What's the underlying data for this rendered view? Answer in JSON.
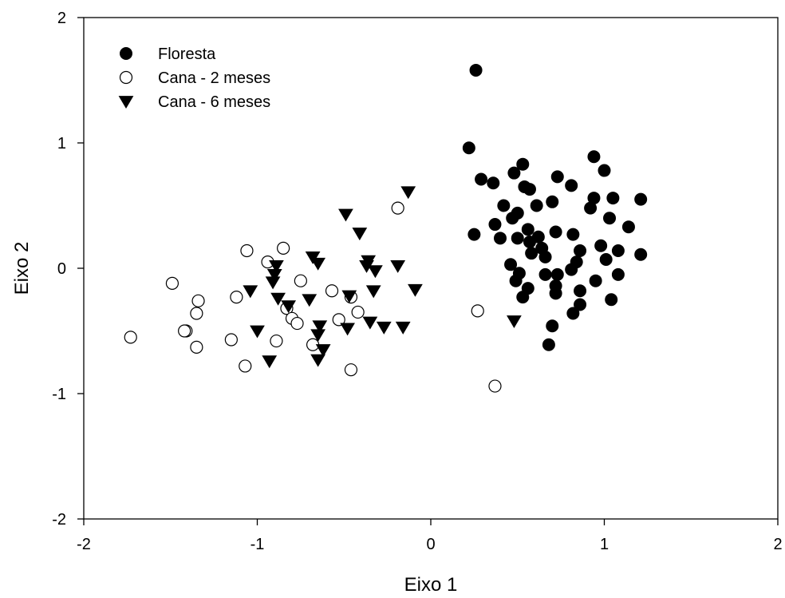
{
  "chart_data": {
    "type": "scatter",
    "xlabel": "Eixo 1",
    "ylabel": "Eixo 2",
    "xlim": [
      -2,
      2
    ],
    "ylim": [
      -2,
      2
    ],
    "xticks": [
      "-2",
      "-1",
      "0",
      "1",
      "2"
    ],
    "yticks": [
      "-2",
      "-1",
      "0",
      "1",
      "2"
    ],
    "grid": false,
    "legend_position": "top-left",
    "series": [
      {
        "name": "Floresta",
        "marker": "filled-circle",
        "color": "#000000",
        "points": [
          [
            0.26,
            1.58
          ],
          [
            0.22,
            0.96
          ],
          [
            0.94,
            0.89
          ],
          [
            0.53,
            0.83
          ],
          [
            1.0,
            0.78
          ],
          [
            0.48,
            0.76
          ],
          [
            0.73,
            0.73
          ],
          [
            0.29,
            0.71
          ],
          [
            0.36,
            0.68
          ],
          [
            0.81,
            0.66
          ],
          [
            0.54,
            0.65
          ],
          [
            0.57,
            0.63
          ],
          [
            1.21,
            0.55
          ],
          [
            0.94,
            0.56
          ],
          [
            1.05,
            0.56
          ],
          [
            0.7,
            0.53
          ],
          [
            0.42,
            0.5
          ],
          [
            0.61,
            0.5
          ],
          [
            0.92,
            0.48
          ],
          [
            0.5,
            0.44
          ],
          [
            1.03,
            0.4
          ],
          [
            0.47,
            0.4
          ],
          [
            0.37,
            0.35
          ],
          [
            1.14,
            0.33
          ],
          [
            0.56,
            0.31
          ],
          [
            0.72,
            0.29
          ],
          [
            0.25,
            0.27
          ],
          [
            0.82,
            0.27
          ],
          [
            0.5,
            0.24
          ],
          [
            0.62,
            0.25
          ],
          [
            0.4,
            0.24
          ],
          [
            0.57,
            0.21
          ],
          [
            0.98,
            0.18
          ],
          [
            0.64,
            0.16
          ],
          [
            1.08,
            0.14
          ],
          [
            0.86,
            0.14
          ],
          [
            0.58,
            0.12
          ],
          [
            1.21,
            0.11
          ],
          [
            0.66,
            0.09
          ],
          [
            1.01,
            0.07
          ],
          [
            0.84,
            0.05
          ],
          [
            0.46,
            0.03
          ],
          [
            0.81,
            -0.01
          ],
          [
            0.51,
            -0.04
          ],
          [
            0.66,
            -0.05
          ],
          [
            0.73,
            -0.05
          ],
          [
            1.08,
            -0.05
          ],
          [
            0.95,
            -0.1
          ],
          [
            0.49,
            -0.1
          ],
          [
            0.72,
            -0.14
          ],
          [
            0.56,
            -0.16
          ],
          [
            0.86,
            -0.18
          ],
          [
            0.72,
            -0.2
          ],
          [
            0.53,
            -0.23
          ],
          [
            1.04,
            -0.25
          ],
          [
            0.86,
            -0.29
          ],
          [
            0.82,
            -0.36
          ],
          [
            0.7,
            -0.46
          ],
          [
            0.68,
            -0.61
          ]
        ]
      },
      {
        "name": "Cana - 2 meses",
        "marker": "open-circle",
        "color": "#000000",
        "points": [
          [
            -0.19,
            0.48
          ],
          [
            -1.06,
            0.14
          ],
          [
            -0.85,
            0.16
          ],
          [
            -0.94,
            0.05
          ],
          [
            -1.49,
            -0.12
          ],
          [
            -0.75,
            -0.1
          ],
          [
            -0.57,
            -0.18
          ],
          [
            -1.12,
            -0.23
          ],
          [
            -1.34,
            -0.26
          ],
          [
            -0.46,
            -0.23
          ],
          [
            -0.83,
            -0.32
          ],
          [
            -0.42,
            -0.35
          ],
          [
            -1.35,
            -0.36
          ],
          [
            -0.8,
            -0.4
          ],
          [
            -0.53,
            -0.41
          ],
          [
            -0.77,
            -0.44
          ],
          [
            -1.41,
            -0.5
          ],
          [
            -1.42,
            -0.5
          ],
          [
            -1.15,
            -0.57
          ],
          [
            -0.89,
            -0.58
          ],
          [
            -0.68,
            -0.61
          ],
          [
            -1.35,
            -0.63
          ],
          [
            -1.73,
            -0.55
          ],
          [
            -1.07,
            -0.78
          ],
          [
            -0.46,
            -0.81
          ],
          [
            0.27,
            -0.34
          ],
          [
            0.37,
            -0.94
          ]
        ]
      },
      {
        "name": "Cana - 6 meses",
        "marker": "filled-down-triangle",
        "color": "#000000",
        "points": [
          [
            -0.13,
            0.61
          ],
          [
            -0.49,
            0.43
          ],
          [
            -0.41,
            0.28
          ],
          [
            -0.68,
            0.09
          ],
          [
            -0.65,
            0.04
          ],
          [
            -0.89,
            0.02
          ],
          [
            -0.36,
            0.06
          ],
          [
            -0.37,
            0.02
          ],
          [
            -0.32,
            -0.02
          ],
          [
            -0.19,
            0.02
          ],
          [
            -0.9,
            -0.05
          ],
          [
            -0.91,
            -0.11
          ],
          [
            -1.04,
            -0.18
          ],
          [
            -0.88,
            -0.24
          ],
          [
            -0.7,
            -0.25
          ],
          [
            -0.33,
            -0.18
          ],
          [
            -0.09,
            -0.17
          ],
          [
            -0.47,
            -0.22
          ],
          [
            -0.82,
            -0.3
          ],
          [
            -0.35,
            -0.43
          ],
          [
            -0.48,
            -0.48
          ],
          [
            -0.27,
            -0.47
          ],
          [
            -0.16,
            -0.47
          ],
          [
            -0.64,
            -0.46
          ],
          [
            -1.0,
            -0.5
          ],
          [
            -0.65,
            -0.53
          ],
          [
            -0.62,
            -0.65
          ],
          [
            -0.93,
            -0.74
          ],
          [
            -0.65,
            -0.73
          ],
          [
            0.48,
            -0.42
          ]
        ]
      }
    ]
  }
}
